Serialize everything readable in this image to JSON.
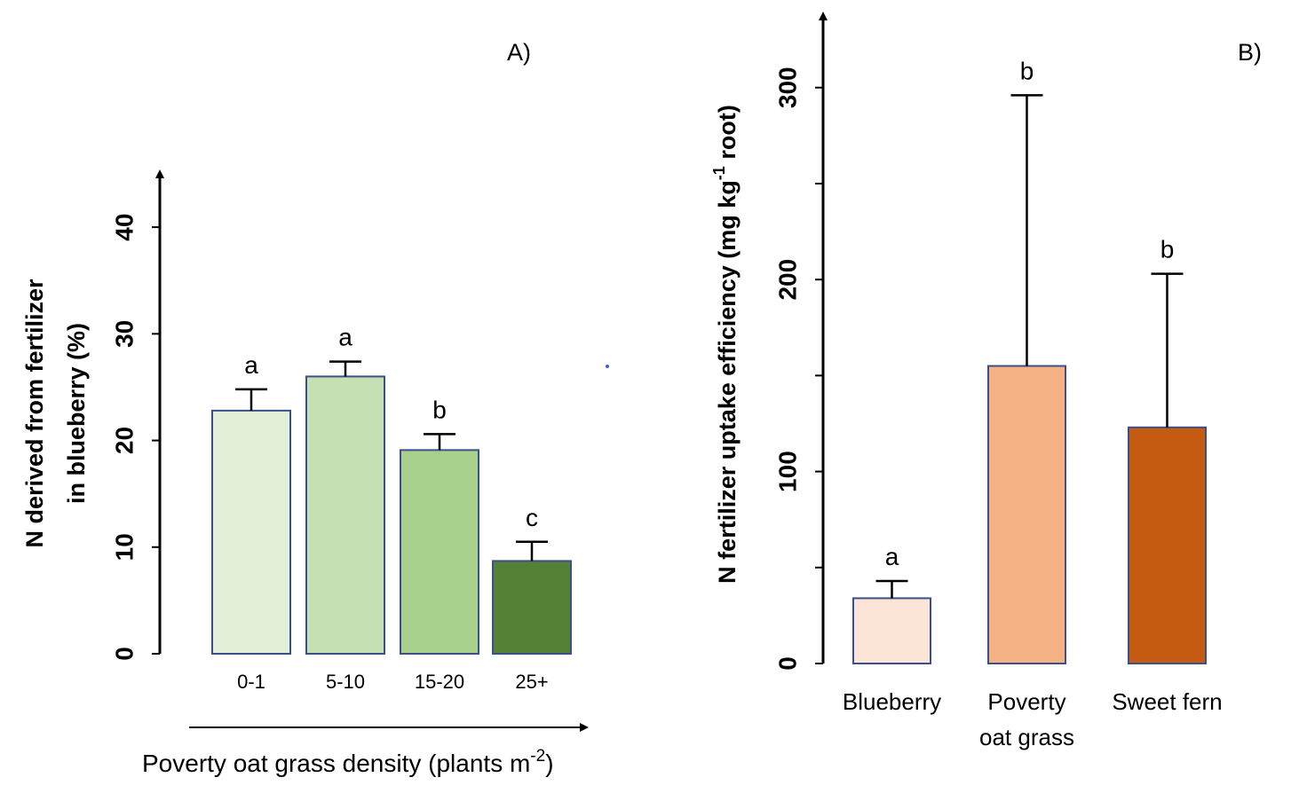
{
  "charts": [
    {
      "type": "bar",
      "panel_label": "A)",
      "categories": [
        "0-1",
        "5-10",
        "15-20",
        "25+"
      ],
      "values": [
        22.8,
        26.0,
        19.1,
        8.7
      ],
      "errors": [
        2.0,
        1.4,
        1.5,
        1.8
      ],
      "significance": [
        "a",
        "a",
        "b",
        "c"
      ],
      "colors": [
        "#e3efd8",
        "#c5e0b3",
        "#a9d18e",
        "#538135"
      ],
      "ylabel_line1": "N derived from fertilizer",
      "ylabel_line2": "in blueberry (%)",
      "xlabel_main": "Poverty oat grass density (plants m",
      "xlabel_sup": "-2",
      "xlabel_end": ")",
      "ylim": [
        0,
        45
      ],
      "yticks": [
        0,
        10,
        20,
        30,
        40
      ],
      "ytick_labels": [
        "0",
        "10",
        "20",
        "30",
        "40"
      ]
    },
    {
      "type": "bar",
      "panel_label": "B)",
      "categories": [
        [
          "Blueberry"
        ],
        [
          "Poverty",
          "oat grass"
        ],
        [
          "Sweet fern"
        ]
      ],
      "values": [
        34,
        155,
        123
      ],
      "errors": [
        9,
        141,
        80
      ],
      "significance": [
        "a",
        "b",
        "b"
      ],
      "colors": [
        "#fbe5d6",
        "#f4b183",
        "#c55a11"
      ],
      "ylabel_main": "N fertilizer uptake efficiency (mg kg",
      "ylabel_sup": "-1",
      "ylabel_end": " root)",
      "ylim": [
        0,
        335
      ],
      "yticks": [
        0,
        50,
        100,
        150,
        200,
        250,
        300
      ],
      "ytick_labels": [
        "0",
        "",
        "100",
        "",
        "200",
        "",
        "300"
      ]
    }
  ]
}
